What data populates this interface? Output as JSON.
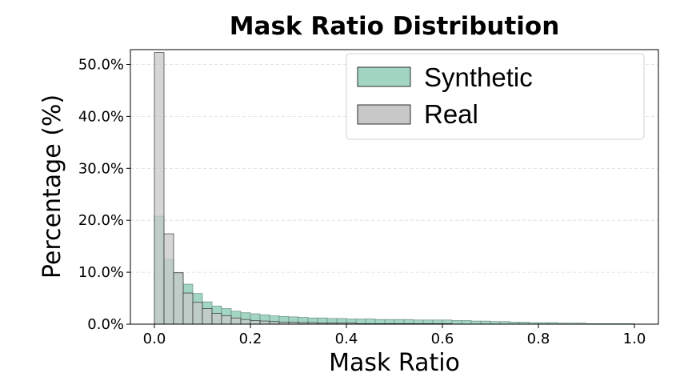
{
  "chart_data": {
    "type": "bar",
    "title": "Mask Ratio Distribution",
    "xlabel": "Mask Ratio",
    "ylabel": "Percentage (%)",
    "xlim": [
      0.0,
      1.0
    ],
    "ylim": [
      0,
      53
    ],
    "bins": 50,
    "bin_width": 0.02,
    "x_ticks": [
      0.0,
      0.2,
      0.4,
      0.6,
      0.8,
      1.0
    ],
    "x_tick_labels": [
      "0.0",
      "0.2",
      "0.4",
      "0.6",
      "0.8",
      "1.0"
    ],
    "y_ticks": [
      0,
      10,
      20,
      30,
      40,
      50
    ],
    "y_tick_labels": [
      "0.0%",
      "10.0%",
      "20.0%",
      "30.0%",
      "40.0%",
      "50.0%"
    ],
    "grid": "y-dashed",
    "legend": "top-right",
    "series": [
      {
        "name": "Synthetic",
        "color": "#a3d5c3",
        "values": [
          20.8,
          12.5,
          9.9,
          7.7,
          5.9,
          4.3,
          3.5,
          3.0,
          2.5,
          2.2,
          2.0,
          1.8,
          1.6,
          1.5,
          1.4,
          1.3,
          1.2,
          1.2,
          1.1,
          1.1,
          1.0,
          1.0,
          1.0,
          0.9,
          0.9,
          0.9,
          0.9,
          0.8,
          0.8,
          0.8,
          0.8,
          0.7,
          0.7,
          0.6,
          0.6,
          0.5,
          0.5,
          0.4,
          0.4,
          0.3,
          0.3,
          0.3,
          0.2,
          0.2,
          0.2,
          0.1,
          0.1,
          0.1,
          0.1,
          0.1
        ]
      },
      {
        "name": "Real",
        "color": "#c8c8c8",
        "values": [
          52.3,
          17.4,
          9.9,
          6.0,
          4.2,
          3.0,
          2.1,
          1.6,
          1.2,
          0.9,
          0.7,
          0.6,
          0.5,
          0.4,
          0.4,
          0.3,
          0.3,
          0.2,
          0.2,
          0.2,
          0.2,
          0.1,
          0.1,
          0.1,
          0.1,
          0.1,
          0.1,
          0.1,
          0.1,
          0.1,
          0.1,
          0.0,
          0.0,
          0.0,
          0.0,
          0.0,
          0.0,
          0.0,
          0.0,
          0.0,
          0.0,
          0.0,
          0.0,
          0.0,
          0.0,
          0.0,
          0.0,
          0.0,
          0.0,
          0.0
        ]
      }
    ]
  }
}
